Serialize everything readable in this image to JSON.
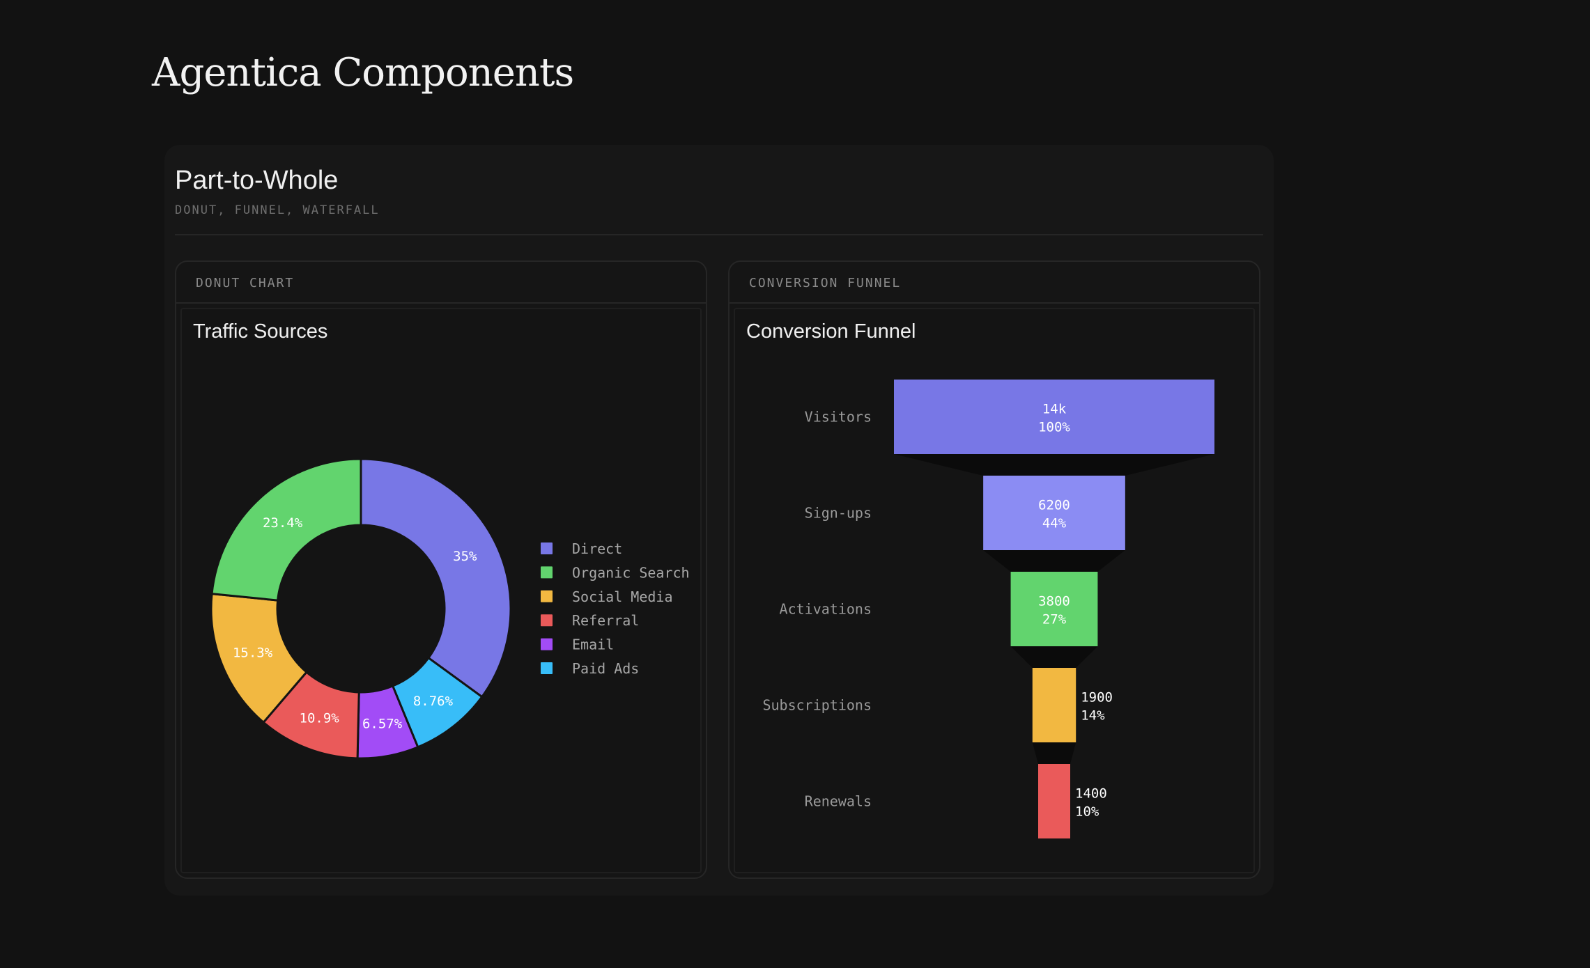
{
  "page": {
    "title": "Agentica Components"
  },
  "section": {
    "title": "Part-to-Whole",
    "subtitle": "DONUT, FUNNEL, WATERFALL"
  },
  "donut_card": {
    "label": "DONUT CHART",
    "title": "Traffic Sources"
  },
  "funnel_card": {
    "label": "CONVERSION FUNNEL",
    "title": "Conversion Funnel"
  },
  "chart_data": [
    {
      "type": "pie",
      "variant": "donut",
      "title": "Traffic Sources",
      "legend_placement": "right",
      "slices": [
        {
          "label": "Direct",
          "value": 35,
          "display": "35%",
          "color": "#7877e6"
        },
        {
          "label": "Paid Ads",
          "value": 8.76,
          "display": "8.76%",
          "color": "#38bdf8"
        },
        {
          "label": "Email",
          "value": 6.57,
          "display": "6.57%",
          "color": "#a24cf6"
        },
        {
          "label": "Referral",
          "value": 10.9,
          "display": "10.9%",
          "color": "#ea5a5a"
        },
        {
          "label": "Social Media",
          "value": 15.3,
          "display": "15.3%",
          "color": "#f2b841"
        },
        {
          "label": "Organic Search",
          "value": 23.4,
          "display": "23.4%",
          "color": "#62d46e"
        }
      ],
      "legend": [
        "Direct",
        "Organic Search",
        "Social Media",
        "Referral",
        "Email",
        "Paid Ads"
      ]
    },
    {
      "type": "bar",
      "variant": "funnel",
      "title": "Conversion Funnel",
      "stages": [
        {
          "label": "Visitors",
          "value": 14000,
          "display": "14k",
          "percent": "100%",
          "color": "#7877e6"
        },
        {
          "label": "Sign-ups",
          "value": 6200,
          "display": "6200",
          "percent": "44%",
          "color": "#8b8cf3"
        },
        {
          "label": "Activations",
          "value": 3800,
          "display": "3800",
          "percent": "27%",
          "color": "#62d46e"
        },
        {
          "label": "Subscriptions",
          "value": 1900,
          "display": "1900",
          "percent": "14%",
          "color": "#f2b841"
        },
        {
          "label": "Renewals",
          "value": 1400,
          "display": "1400",
          "percent": "10%",
          "color": "#ea5a5a"
        }
      ]
    }
  ]
}
